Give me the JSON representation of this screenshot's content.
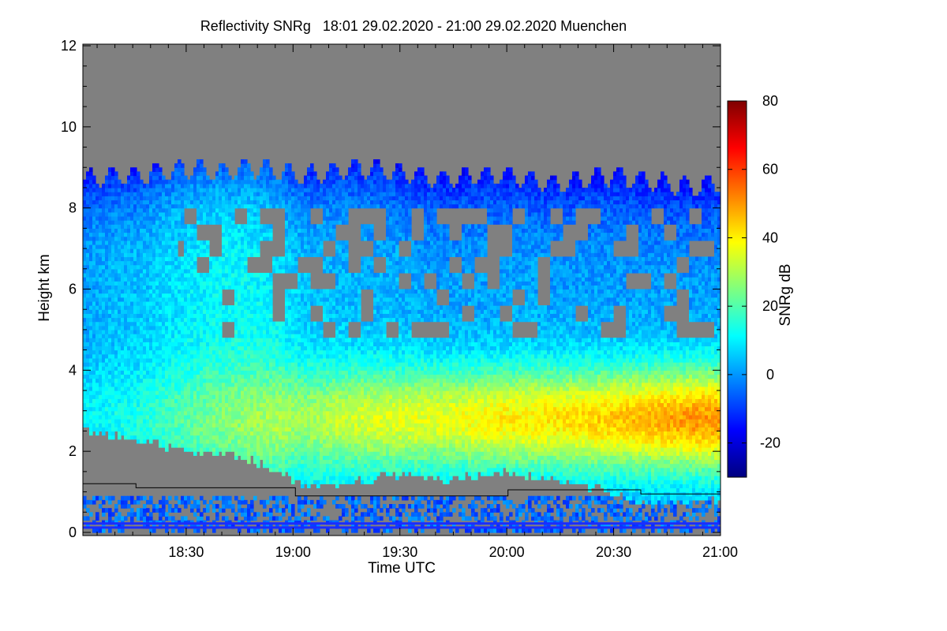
{
  "chart_data": {
    "type": "heatmap",
    "title": "Reflectivity SNRg   18:01 29.02.2020 - 21:00 29.02.2020 Muenchen",
    "xlabel": "Time UTC",
    "ylabel": "Height km",
    "colorbar_label": "SNRg dB",
    "x_range": [
      "18:01",
      "21:00"
    ],
    "x_ticks": [
      "18:30",
      "19:00",
      "19:30",
      "20:00",
      "20:30",
      "21:00"
    ],
    "x_tick_minutes": [
      29,
      59,
      89,
      119,
      149,
      179
    ],
    "x_total_minutes": 179,
    "ylim": [
      0,
      12
    ],
    "y_ticks": [
      "0",
      "2",
      "4",
      "6",
      "8",
      "10",
      "12"
    ],
    "y_tick_values": [
      0,
      2,
      4,
      6,
      8,
      10,
      12
    ],
    "colorbar_range": [
      -30,
      80
    ],
    "colorbar_ticks": [
      "-20",
      "0",
      "20",
      "40",
      "60",
      "80"
    ],
    "colorbar_tick_values": [
      -20,
      0,
      20,
      40,
      60,
      80
    ],
    "colormap": [
      "#00007f",
      "#0000ff",
      "#007fff",
      "#00ffff",
      "#7fff7f",
      "#ffff00",
      "#ff7f00",
      "#ff0000",
      "#7f0000"
    ],
    "no_signal_color": "#808080",
    "cloud_top_km": [
      8.7,
      8.8,
      8.8,
      8.9,
      9.0,
      8.9,
      9.0,
      8.9,
      8.8,
      8.9,
      9.0,
      8.9,
      8.8,
      8.7,
      8.8,
      8.8,
      8.7,
      8.6,
      8.7,
      8.8,
      8.7,
      8.6,
      8.5,
      8.6
    ],
    "cloud_base_km": [
      2.6,
      2.5,
      2.4,
      2.2,
      2.1,
      2.0,
      1.9,
      1.6,
      1.3,
      1.2,
      1.4,
      1.5,
      1.5,
      1.4,
      1.5,
      1.6,
      1.5,
      1.4,
      1.3,
      1.1,
      0.9,
      0.8,
      0.9,
      0.9
    ],
    "core_peak_km": 2.8,
    "core_peak_dB": [
      10,
      12,
      14,
      18,
      22,
      25,
      28,
      30,
      28,
      32,
      34,
      35,
      36,
      36,
      38,
      40,
      40,
      41,
      42,
      44,
      46,
      48,
      50,
      50
    ],
    "upper_level_dB": [
      2,
      4,
      5,
      8,
      10,
      12,
      12,
      10,
      6,
      5,
      4,
      4,
      3,
      2,
      2,
      2,
      3,
      2,
      2,
      2,
      2,
      2,
      2,
      2
    ],
    "melting_layer_km": [
      1.2,
      1.2,
      1.1,
      1.1,
      1.1,
      1.1,
      1.1,
      1.1,
      0.9,
      0.9,
      0.9,
      0.9,
      0.9,
      0.9,
      0.9,
      0.9,
      1.05,
      1.05,
      1.05,
      1.05,
      1.05,
      0.95,
      0.95,
      0.95
    ]
  }
}
